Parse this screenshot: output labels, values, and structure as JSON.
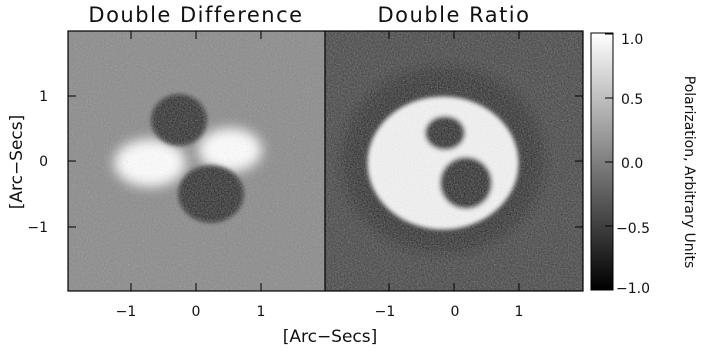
{
  "chart_data": [
    {
      "type": "heatmap",
      "title": "Double Difference",
      "xlabel": "[Arc−Secs]",
      "ylabel": "[Arc−Secs]",
      "xlim": [
        -2,
        2
      ],
      "ylim": [
        -2,
        2
      ],
      "xticks": [
        "−1",
        "0",
        "1"
      ],
      "yticks": [
        "1",
        "0",
        "−1"
      ],
      "background_level": 0.0,
      "features": [
        {
          "shape": "lobe",
          "center": [
            -0.4,
            0.6
          ],
          "level": -1.0
        },
        {
          "shape": "lobe",
          "center": [
            0.25,
            -0.6
          ],
          "level": -1.0
        },
        {
          "shape": "lobe",
          "center": [
            -0.5,
            0.0
          ],
          "level": 1.0
        },
        {
          "shape": "lobe",
          "center": [
            0.65,
            0.2
          ],
          "level": 1.0
        }
      ]
    },
    {
      "type": "heatmap",
      "title": "Double Ratio",
      "xlabel": "[Arc−Secs]",
      "xlim": [
        -2,
        2
      ],
      "ylim": [
        -2,
        2
      ],
      "xticks": [
        "−1",
        "0",
        "1"
      ],
      "background_level": -0.7,
      "features": [
        {
          "shape": "ring",
          "center": [
            -0.2,
            0.15
          ],
          "level": -0.95
        },
        {
          "shape": "disk",
          "center": [
            -0.2,
            0.15
          ],
          "level": 1.0
        },
        {
          "shape": "blob",
          "center": [
            -0.2,
            0.4
          ],
          "level": -1.0
        },
        {
          "shape": "blob",
          "center": [
            0.15,
            -0.3
          ],
          "level": -1.0
        }
      ]
    }
  ],
  "colorbar": {
    "label": "Polarization, Arbitrary Units",
    "ticks": [
      "1.0",
      "0.5",
      "0.0",
      "−0.5",
      "−1.0"
    ],
    "range": [
      -1.0,
      1.0
    ],
    "colors": {
      "high": "#ffffff",
      "low": "#000000"
    }
  }
}
